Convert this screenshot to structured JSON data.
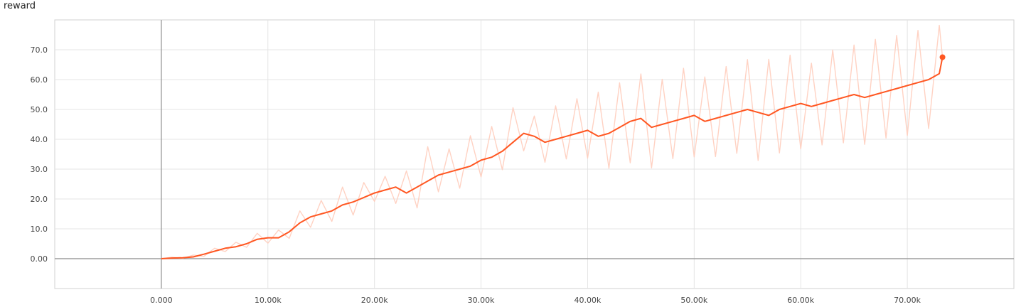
{
  "title": "reward",
  "colors": {
    "smoothed": "#ff5722",
    "raw": "#ffcdbd",
    "grid": "#e4e4e4",
    "axis": "#9e9e9e"
  },
  "chart_data": {
    "type": "line",
    "title": "reward",
    "xlabel": "",
    "ylabel": "",
    "xlim": [
      -10000,
      80000
    ],
    "ylim": [
      -10,
      80
    ],
    "grid": true,
    "x_ticks": [
      0,
      10000,
      20000,
      30000,
      40000,
      50000,
      60000,
      70000
    ],
    "x_tick_labels": [
      "0.000",
      "10.00k",
      "20.00k",
      "30.00k",
      "40.00k",
      "50.00k",
      "60.00k",
      "70.00k"
    ],
    "y_ticks": [
      0,
      10,
      20,
      30,
      40,
      50,
      60,
      70
    ],
    "y_tick_labels": [
      "0.00",
      "10.0",
      "20.0",
      "30.0",
      "40.0",
      "50.0",
      "60.0",
      "70.0"
    ],
    "series": [
      {
        "role": "smoothed",
        "x": [
          0,
          1000,
          2000,
          3000,
          4000,
          5000,
          6000,
          7000,
          8000,
          9000,
          10000,
          11000,
          12000,
          13000,
          14000,
          15000,
          16000,
          17000,
          18000,
          19000,
          20000,
          21000,
          22000,
          23000,
          24000,
          25000,
          26000,
          27000,
          28000,
          29000,
          30000,
          31000,
          32000,
          33000,
          34000,
          35000,
          36000,
          37000,
          38000,
          39000,
          40000,
          41000,
          42000,
          43000,
          44000,
          45000,
          46000,
          47000,
          48000,
          49000,
          50000,
          51000,
          52000,
          53000,
          54000,
          55000,
          56000,
          57000,
          58000,
          59000,
          60000,
          61000,
          62000,
          63000,
          64000,
          65000,
          66000,
          67000,
          68000,
          69000,
          70000,
          71000,
          72000,
          73000,
          73300
        ],
        "y": [
          0,
          0.2,
          0.3,
          0.6,
          1.5,
          2.5,
          3.5,
          4,
          5,
          6.5,
          7,
          7,
          9,
          12,
          14,
          15,
          16,
          18,
          19,
          20.5,
          22,
          23,
          24,
          22,
          24,
          26,
          28,
          29,
          30,
          31,
          33,
          34,
          36,
          39,
          42,
          41,
          39,
          40,
          41,
          42,
          43,
          41,
          42,
          44,
          46,
          47,
          44,
          45,
          46,
          47,
          48,
          46,
          47,
          48,
          49,
          50,
          49,
          48,
          50,
          51,
          52,
          51,
          52,
          53,
          54,
          55,
          54,
          55,
          56,
          57,
          58,
          59,
          60,
          62,
          67.5
        ]
      },
      {
        "role": "raw",
        "x": [
          0,
          1000,
          2000,
          3000,
          4000,
          5000,
          6000,
          7000,
          8000,
          9000,
          10000,
          11000,
          12000,
          13000,
          14000,
          15000,
          16000,
          17000,
          18000,
          19000,
          20000,
          21000,
          22000,
          23000,
          24000,
          25000,
          26000,
          27000,
          28000,
          29000,
          30000,
          31000,
          32000,
          33000,
          34000,
          35000,
          36000,
          37000,
          38000,
          39000,
          40000,
          41000,
          42000,
          43000,
          44000,
          45000,
          46000,
          47000,
          48000,
          49000,
          50000,
          51000,
          52000,
          53000,
          54000,
          55000,
          56000,
          57000,
          58000,
          59000,
          60000,
          61000,
          62000,
          63000,
          64000,
          65000,
          66000,
          67000,
          68000,
          69000,
          70000,
          71000,
          72000,
          73000,
          73300
        ],
        "y": [
          0,
          0.5,
          0.1,
          1.2,
          0.8,
          3.5,
          2.4,
          5.5,
          3.8,
          8.5,
          5.2,
          9.6,
          6.8,
          16,
          10.5,
          19.5,
          12.5,
          24,
          14.6,
          25.5,
          19.2,
          27.6,
          18.5,
          29.4,
          17,
          37.5,
          22.4,
          36.8,
          23.6,
          41.2,
          27.4,
          44.3,
          29.8,
          50.6,
          36.1,
          47.8,
          32.3,
          51.2,
          33.4,
          53.6,
          33.7,
          55.8,
          30.3,
          58.9,
          32.1,
          61.9,
          30.4,
          60.1,
          33.5,
          63.8,
          34.1,
          60.9,
          34.2,
          64.4,
          35.3,
          66.7,
          32.9,
          66.8,
          35.4,
          68.2,
          36.8,
          65.5,
          38.1,
          69.9,
          38.8,
          71.6,
          38.3,
          73.5,
          40.4,
          74.8,
          41.3,
          76.5,
          43.6,
          78.2,
          67.5
        ]
      }
    ]
  }
}
